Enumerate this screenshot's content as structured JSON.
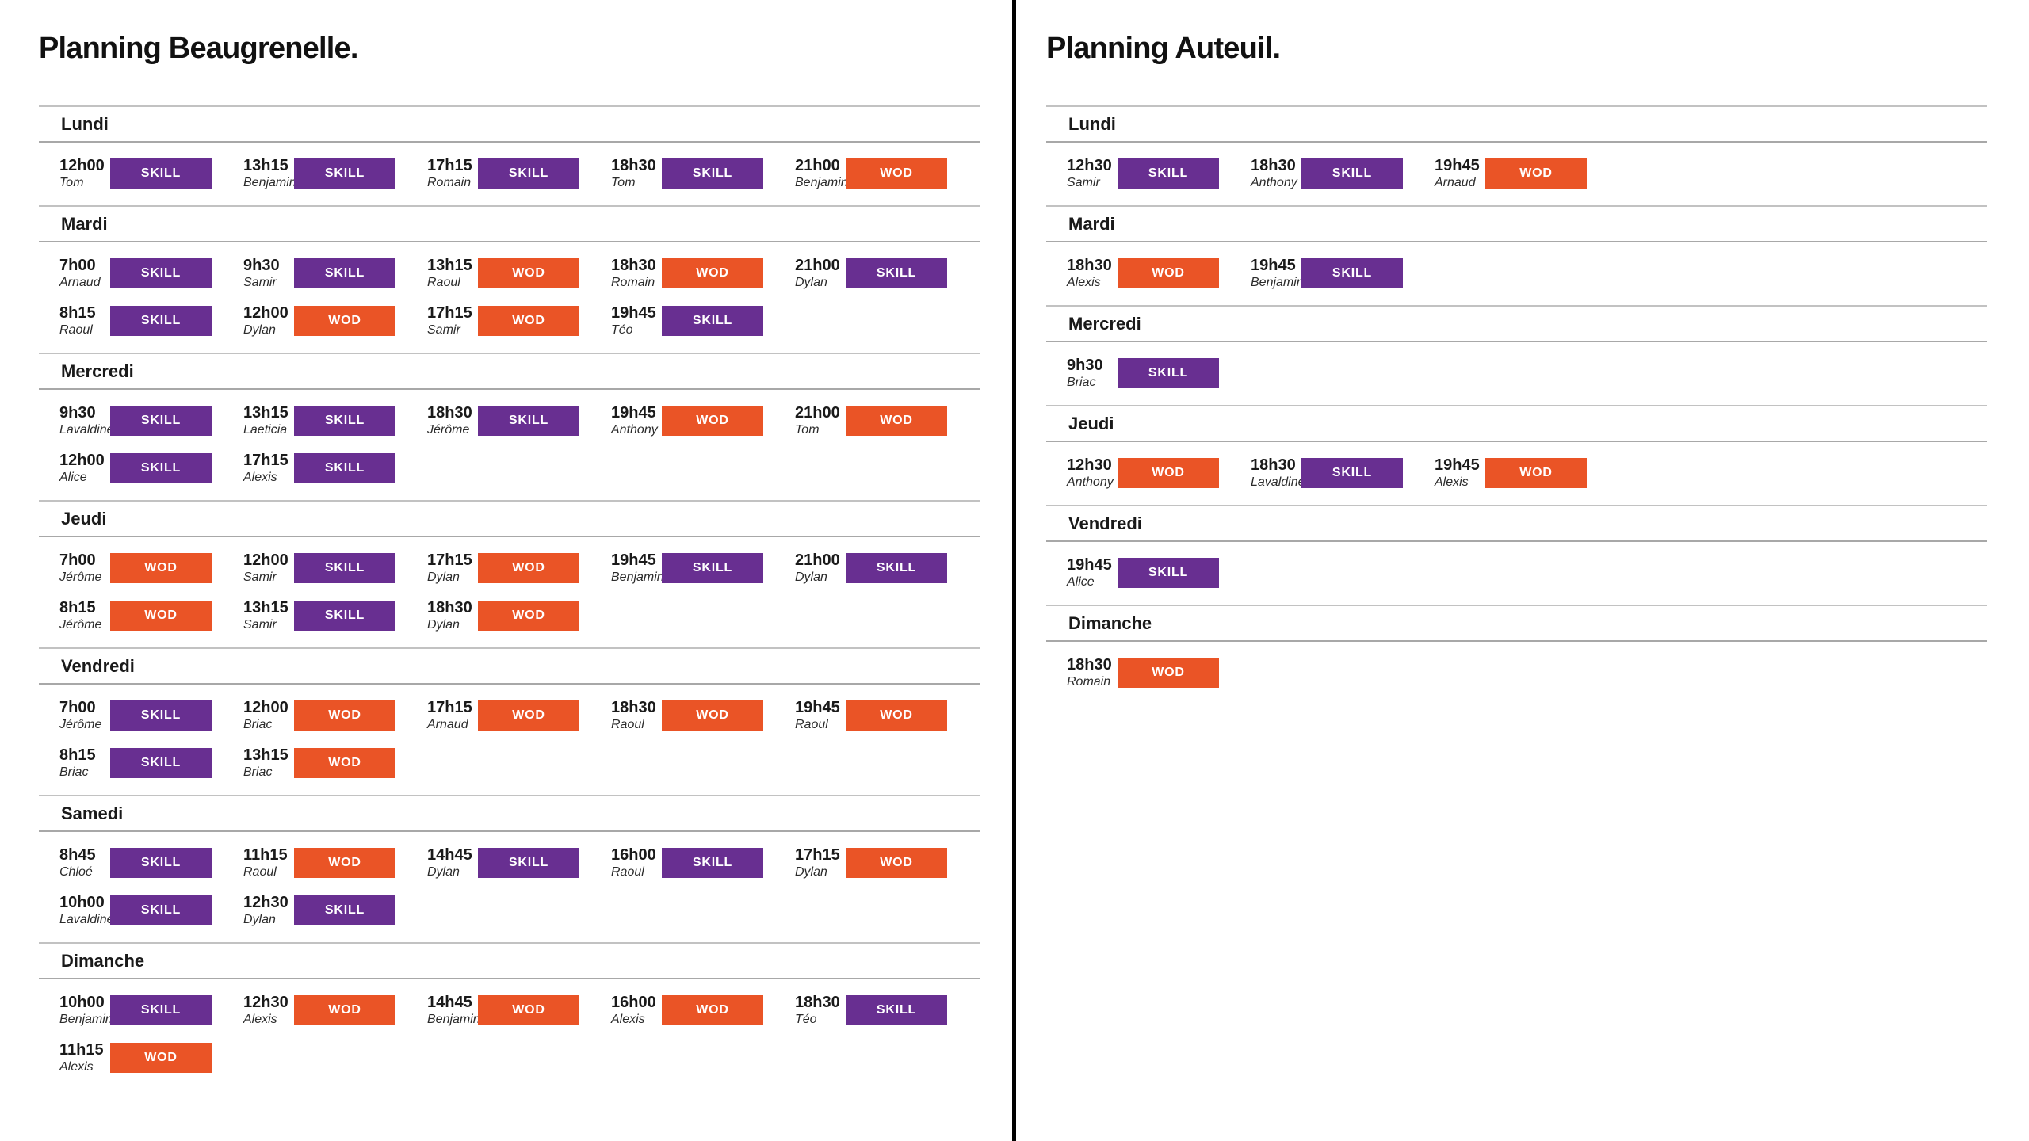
{
  "colors": {
    "skill_badge": "#682f91",
    "wod_badge": "#ea5426",
    "section_line": "#c2c2c2",
    "header_line": "#a8a8a8",
    "divider": "#000000"
  },
  "panels": [
    {
      "title": "Planning Beaugrenelle.",
      "days": [
        {
          "name": "Lundi",
          "rows": [
            [
              {
                "time": "12h00",
                "name": "Tom",
                "type": "SKILL"
              },
              {
                "time": "13h15",
                "name": "Benjamin",
                "type": "SKILL"
              },
              {
                "time": "17h15",
                "name": "Romain",
                "type": "SKILL"
              },
              {
                "time": "18h30",
                "name": "Tom",
                "type": "SKILL"
              },
              {
                "time": "21h00",
                "name": "Benjamin",
                "type": "WOD"
              }
            ]
          ]
        },
        {
          "name": "Mardi",
          "rows": [
            [
              {
                "time": "7h00",
                "name": "Arnaud",
                "type": "SKILL"
              },
              {
                "time": "9h30",
                "name": "Samir",
                "type": "SKILL"
              },
              {
                "time": "13h15",
                "name": "Raoul",
                "type": "WOD"
              },
              {
                "time": "18h30",
                "name": "Romain",
                "type": "WOD"
              },
              {
                "time": "21h00",
                "name": "Dylan",
                "type": "SKILL"
              }
            ],
            [
              {
                "time": "8h15",
                "name": "Raoul",
                "type": "SKILL"
              },
              {
                "time": "12h00",
                "name": "Dylan",
                "type": "WOD"
              },
              {
                "time": "17h15",
                "name": "Samir",
                "type": "WOD"
              },
              {
                "time": "19h45",
                "name": "Téo",
                "type": "SKILL"
              }
            ]
          ]
        },
        {
          "name": "Mercredi",
          "rows": [
            [
              {
                "time": "9h30",
                "name": "Lavaldine",
                "type": "SKILL"
              },
              {
                "time": "13h15",
                "name": "Laeticia",
                "type": "SKILL"
              },
              {
                "time": "18h30",
                "name": "Jérôme",
                "type": "SKILL"
              },
              {
                "time": "19h45",
                "name": "Anthony",
                "type": "WOD"
              },
              {
                "time": "21h00",
                "name": "Tom",
                "type": "WOD"
              }
            ],
            [
              {
                "time": "12h00",
                "name": "Alice",
                "type": "SKILL"
              },
              {
                "time": "17h15",
                "name": "Alexis",
                "type": "SKILL"
              }
            ]
          ]
        },
        {
          "name": "Jeudi",
          "rows": [
            [
              {
                "time": "7h00",
                "name": "Jérôme",
                "type": "WOD"
              },
              {
                "time": "12h00",
                "name": "Samir",
                "type": "SKILL"
              },
              {
                "time": "17h15",
                "name": "Dylan",
                "type": "WOD"
              },
              {
                "time": "19h45",
                "name": "Benjamin",
                "type": "SKILL"
              },
              {
                "time": "21h00",
                "name": "Dylan",
                "type": "SKILL"
              }
            ],
            [
              {
                "time": "8h15",
                "name": "Jérôme",
                "type": "WOD"
              },
              {
                "time": "13h15",
                "name": "Samir",
                "type": "SKILL"
              },
              {
                "time": "18h30",
                "name": "Dylan",
                "type": "WOD"
              }
            ]
          ]
        },
        {
          "name": "Vendredi",
          "rows": [
            [
              {
                "time": "7h00",
                "name": "Jérôme",
                "type": "SKILL"
              },
              {
                "time": "12h00",
                "name": "Briac",
                "type": "WOD"
              },
              {
                "time": "17h15",
                "name": "Arnaud",
                "type": "WOD"
              },
              {
                "time": "18h30",
                "name": "Raoul",
                "type": "WOD"
              },
              {
                "time": "19h45",
                "name": "Raoul",
                "type": "WOD"
              }
            ],
            [
              {
                "time": "8h15",
                "name": "Briac",
                "type": "SKILL"
              },
              {
                "time": "13h15",
                "name": "Briac",
                "type": "WOD"
              }
            ]
          ]
        },
        {
          "name": "Samedi",
          "rows": [
            [
              {
                "time": "8h45",
                "name": "Chloé",
                "type": "SKILL"
              },
              {
                "time": "11h15",
                "name": "Raoul",
                "type": "WOD"
              },
              {
                "time": "14h45",
                "name": "Dylan",
                "type": "SKILL"
              },
              {
                "time": "16h00",
                "name": "Raoul",
                "type": "SKILL"
              },
              {
                "time": "17h15",
                "name": "Dylan",
                "type": "WOD"
              }
            ],
            [
              {
                "time": "10h00",
                "name": "Lavaldine",
                "type": "SKILL"
              },
              {
                "time": "12h30",
                "name": "Dylan",
                "type": "SKILL"
              }
            ]
          ]
        },
        {
          "name": "Dimanche",
          "rows": [
            [
              {
                "time": "10h00",
                "name": "Benjamin",
                "type": "SKILL"
              },
              {
                "time": "12h30",
                "name": "Alexis",
                "type": "WOD"
              },
              {
                "time": "14h45",
                "name": "Benjamin",
                "type": "WOD"
              },
              {
                "time": "16h00",
                "name": "Alexis",
                "type": "WOD"
              },
              {
                "time": "18h30",
                "name": "Téo",
                "type": "SKILL"
              }
            ],
            [
              {
                "time": "11h15",
                "name": "Alexis",
                "type": "WOD"
              }
            ]
          ]
        }
      ]
    },
    {
      "title": "Planning Auteuil.",
      "days": [
        {
          "name": "Lundi",
          "rows": [
            [
              {
                "time": "12h30",
                "name": "Samir",
                "type": "SKILL"
              },
              {
                "time": "18h30",
                "name": "Anthony",
                "type": "SKILL"
              },
              {
                "time": "19h45",
                "name": "Arnaud",
                "type": "WOD"
              }
            ]
          ]
        },
        {
          "name": "Mardi",
          "rows": [
            [
              {
                "time": "18h30",
                "name": "Alexis",
                "type": "WOD"
              },
              {
                "time": "19h45",
                "name": "Benjamin",
                "type": "SKILL"
              }
            ]
          ]
        },
        {
          "name": "Mercredi",
          "rows": [
            [
              {
                "time": "9h30",
                "name": "Briac",
                "type": "SKILL"
              }
            ]
          ]
        },
        {
          "name": "Jeudi",
          "rows": [
            [
              {
                "time": "12h30",
                "name": "Anthony",
                "type": "WOD"
              },
              {
                "time": "18h30",
                "name": "Lavaldine",
                "type": "SKILL"
              },
              {
                "time": "19h45",
                "name": "Alexis",
                "type": "WOD"
              }
            ]
          ]
        },
        {
          "name": "Vendredi",
          "rows": [
            [
              {
                "time": "19h45",
                "name": "Alice",
                "type": "SKILL"
              }
            ]
          ]
        },
        {
          "name": "Dimanche",
          "rows": [
            [
              {
                "time": "18h30",
                "name": "Romain",
                "type": "WOD"
              }
            ]
          ]
        }
      ]
    }
  ]
}
